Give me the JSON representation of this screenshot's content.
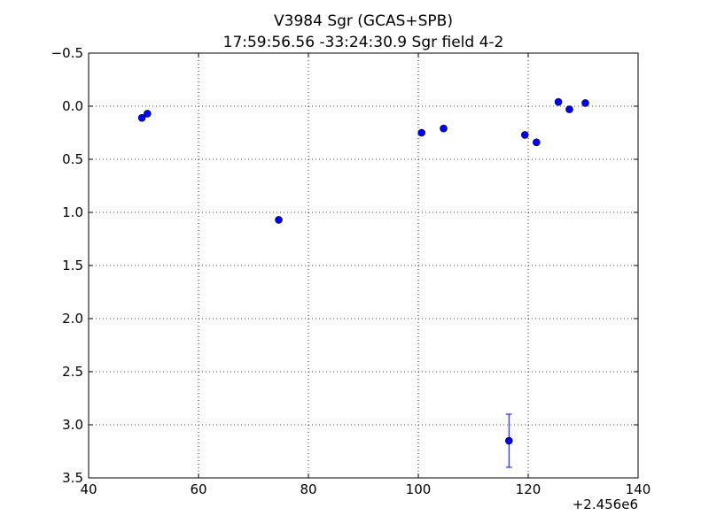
{
  "chart_data": {
    "type": "scatter",
    "title": "V3984 Sgr (GCAS+SPB)",
    "subtitle": "17:59:56.56 -33:24:30.9 Sgr field 4-2",
    "xlabel": "",
    "ylabel": "",
    "x_offset_label": "+2.456e6",
    "xlim": [
      40,
      140
    ],
    "ylim": [
      3.5,
      -0.5
    ],
    "y_inverted": true,
    "grid": true,
    "grid_style": "dotted",
    "x_ticks": [
      40,
      60,
      80,
      100,
      120,
      140
    ],
    "x_tick_labels": [
      "40",
      "60",
      "80",
      "100",
      "120",
      "140"
    ],
    "y_ticks": [
      -0.5,
      0.0,
      0.5,
      1.0,
      1.5,
      2.0,
      2.5,
      3.0,
      3.5
    ],
    "y_tick_labels": [
      "−0.5",
      "0.0",
      "0.5",
      "1.0",
      "1.5",
      "2.0",
      "2.5",
      "3.0",
      "3.5"
    ],
    "marker_color": "#0000ff",
    "points": [
      {
        "x": 49.7,
        "y": 0.11
      },
      {
        "x": 50.7,
        "y": 0.07
      },
      {
        "x": 74.6,
        "y": 1.07
      },
      {
        "x": 100.6,
        "y": 0.25
      },
      {
        "x": 104.6,
        "y": 0.21
      },
      {
        "x": 116.5,
        "y": 3.15,
        "yerr": 0.25
      },
      {
        "x": 119.4,
        "y": 0.27
      },
      {
        "x": 121.5,
        "y": 0.34
      },
      {
        "x": 125.5,
        "y": -0.04
      },
      {
        "x": 127.5,
        "y": 0.03
      },
      {
        "x": 130.4,
        "y": -0.03
      }
    ]
  }
}
